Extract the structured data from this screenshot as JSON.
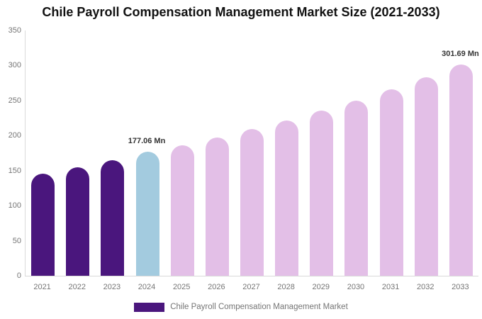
{
  "chart_data": {
    "type": "bar",
    "title": "Chile Payroll Compensation Management Market Size (2021-2033)",
    "categories": [
      "2021",
      "2022",
      "2023",
      "2024",
      "2025",
      "2026",
      "2027",
      "2028",
      "2029",
      "2030",
      "2031",
      "2032",
      "2033"
    ],
    "values": [
      146,
      155,
      165,
      177.06,
      186,
      197,
      209,
      222,
      236,
      250,
      266,
      283,
      301.69
    ],
    "value_unit": "Mn",
    "xlabel": "",
    "ylabel": "",
    "ylim": [
      0,
      350
    ],
    "yticks": [
      0,
      50,
      100,
      150,
      200,
      250,
      300,
      350
    ],
    "grid": false,
    "legend_position": "bottom",
    "legend": [
      {
        "label": "Chile Payroll Compensation Management Market",
        "color": "#4A167D"
      }
    ],
    "bar_colors": [
      "#4A167D",
      "#4A167D",
      "#4A167D",
      "#A3CBDF",
      "#E3BFE7",
      "#E3BFE7",
      "#E3BFE7",
      "#E3BFE7",
      "#E3BFE7",
      "#E3BFE7",
      "#E3BFE7",
      "#E3BFE7",
      "#E3BFE7"
    ],
    "annotations": [
      {
        "category": "2024",
        "text": "177.06 Mn"
      },
      {
        "category": "2033",
        "text": "301.69 Mn"
      }
    ],
    "colors": {
      "historical_bar": "#4A167D",
      "base_year_bar": "#A3CBDF",
      "forecast_bar": "#E3BFE7",
      "axis_line": "#DADADA",
      "tick_text": "#757575",
      "title_text": "#111111",
      "annotation_text": "#333333",
      "legend_text": "#757575"
    }
  }
}
